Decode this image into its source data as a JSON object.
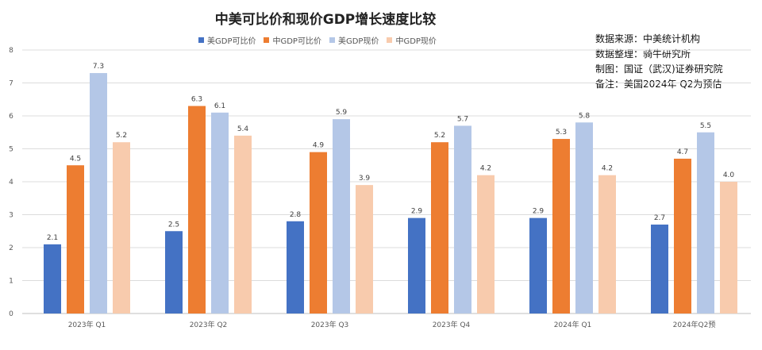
{
  "chart_data": {
    "type": "bar",
    "title": "中美可比价和现价GDP增长速度比较",
    "categories": [
      "2023年 Q1",
      "2023年 Q2",
      "2023年 Q3",
      "2023年 Q4",
      "2024年 Q1",
      "2024年Q2预"
    ],
    "series": [
      {
        "name": "美GDP可比价",
        "values": [
          2.1,
          2.5,
          2.8,
          2.9,
          2.9,
          2.7
        ],
        "labels": [
          "2.1",
          "2.5",
          "2.8",
          "2.9",
          "2.9",
          "2.7"
        ],
        "color": "#4472C4"
      },
      {
        "name": "中GDP可比价",
        "values": [
          4.5,
          6.3,
          4.9,
          5.2,
          5.3,
          4.7
        ],
        "labels": [
          "4.5",
          "6.3",
          "4.9",
          "5.2",
          "5.3",
          "4.7"
        ],
        "color": "#ED7D31"
      },
      {
        "name": "美GDP现价",
        "values": [
          7.3,
          6.1,
          5.9,
          5.7,
          5.8,
          5.5
        ],
        "labels": [
          "7.3",
          "6.1",
          "5.9",
          "5.7",
          "5.8",
          "5.5"
        ],
        "color": "#B4C7E7"
      },
      {
        "name": "中GDP现价",
        "values": [
          5.2,
          5.4,
          3.9,
          4.2,
          4.2,
          4.0
        ],
        "labels": [
          "5.2",
          "5.4",
          "3.9",
          "4.2",
          "4.2",
          "4.0"
        ],
        "color": "#F8CBAD"
      }
    ],
    "yticks": [
      "0",
      "1",
      "2",
      "3",
      "4",
      "5",
      "6",
      "7",
      "8"
    ],
    "ylim": [
      0,
      8
    ],
    "grid": true,
    "legend": "top"
  },
  "notes": [
    "数据来源：中美统计机构",
    "数据整理：骑牛研究所",
    "制图：国证（武汉)证券研究院",
    "备注：美国2024年 Q2为预估"
  ]
}
